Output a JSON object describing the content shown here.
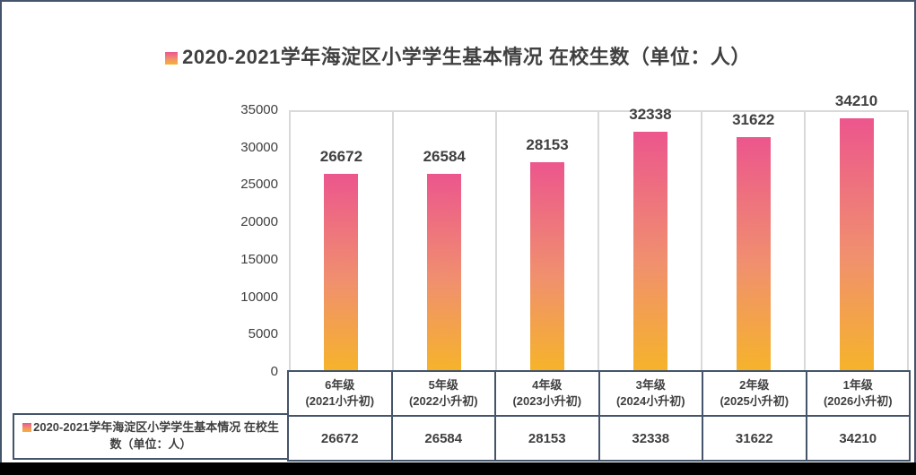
{
  "page": {
    "background": "#ffffff",
    "border_color": "#44546A",
    "bottom_band_color": "#000000"
  },
  "title": {
    "text": "2020-2021学年海淀区小学学生基本情况 在校生数（单位：人）"
  },
  "legend": {
    "text": "2020-2021学年海淀区小学学生基本情况 在校生数（单位：人）"
  },
  "chart_data": {
    "type": "bar",
    "title": "2020-2021学年海淀区小学学生基本情况 在校生数（单位：人）",
    "series_name": "2020-2021学年海淀区小学学生基本情况 在校生数（单位：人）",
    "categories": [
      "6年级(2021小升初)",
      "5年级(2022小升初)",
      "4年级(2023小升初)",
      "3年级(2024小升初)",
      "2年级(2025小升初)",
      "1年级(2026小升初)"
    ],
    "category_lines": [
      [
        "6年级",
        "(2021小升初)"
      ],
      [
        "5年级",
        "(2022小升初)"
      ],
      [
        "4年级",
        "(2023小升初)"
      ],
      [
        "3年级",
        "(2024小升初)"
      ],
      [
        "2年级",
        "(2025小升初)"
      ],
      [
        "1年级",
        "(2026小升初)"
      ]
    ],
    "values": [
      26672,
      26584,
      28153,
      32338,
      31622,
      34210
    ],
    "ylim": [
      0,
      35000
    ],
    "yticks": [
      0,
      5000,
      10000,
      15000,
      20000,
      25000,
      30000,
      35000
    ],
    "grid": "vertical-dividers-only",
    "legend_position": "bottom-left-table-cell",
    "bar_color_top": "#EC568D",
    "bar_color_mid": "#F0906E",
    "bar_color_bottom": "#F6B32B",
    "label_color": "#404040",
    "axis_text_color": "#404040",
    "gridline_color": "#D9D9D9",
    "table_border_color": "#44546A"
  }
}
